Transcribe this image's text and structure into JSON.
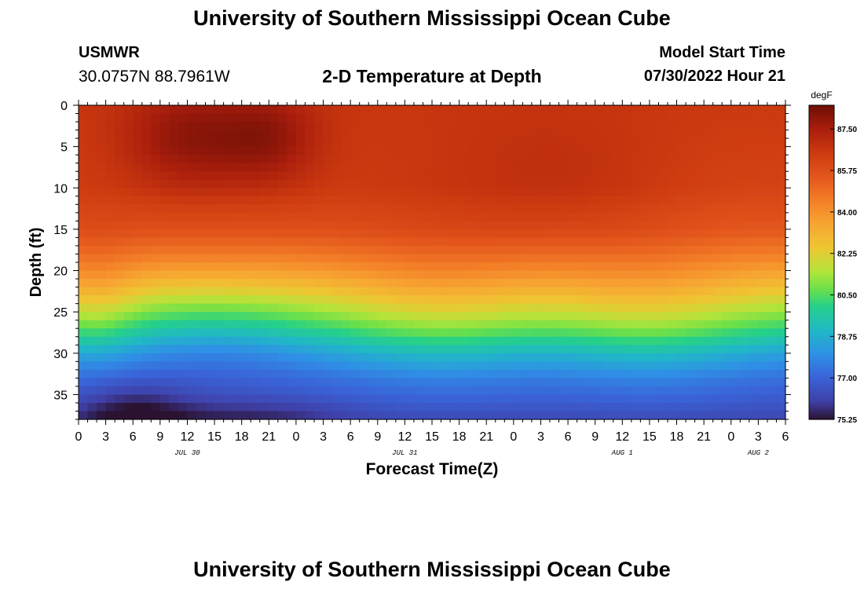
{
  "header": {
    "title": "University of Southern Mississippi Ocean Cube",
    "station_name": "USMWR",
    "station_coords": "30.0757N  88.7961W",
    "plot_title": "2-D Temperature at Depth",
    "start_label": "Model Start Time",
    "start_value": "07/30/2022 Hour 21"
  },
  "footer": {
    "title": "University of Southern Mississippi Ocean Cube"
  },
  "chart_data": {
    "type": "heatmap",
    "title": "2-D Temperature at Depth",
    "xlabel": "Forecast Time(Z)",
    "ylabel": "Depth (ft)",
    "units": "degF",
    "x_hours": [
      0,
      78
    ],
    "y_range": [
      0,
      38
    ],
    "y_ticks": [
      0,
      5,
      10,
      15,
      20,
      25,
      30,
      35
    ],
    "x_tick_labels": [
      "0",
      "3",
      "6",
      "9",
      "12",
      "15",
      "18",
      "21",
      "0",
      "3",
      "6",
      "9",
      "12",
      "15",
      "18",
      "21",
      "0",
      "3",
      "6",
      "9",
      "12",
      "15",
      "18",
      "21",
      "0",
      "3",
      "6"
    ],
    "day_labels": [
      {
        "label": "JUL 30",
        "hour": 12
      },
      {
        "label": "JUL 31",
        "hour": 36
      },
      {
        "label": "AUG 1",
        "hour": 60
      },
      {
        "label": "AUG 2",
        "hour": 75
      }
    ],
    "colorbar": {
      "min": 75.25,
      "max": 88.5,
      "labels": [
        "87.50",
        "85.75",
        "84.00",
        "82.25",
        "80.50",
        "78.75",
        "77.00",
        "75.25"
      ],
      "stops": [
        {
          "v": 75.25,
          "c": "#2a1230"
        },
        {
          "v": 76.0,
          "c": "#3f3fa6"
        },
        {
          "v": 77.0,
          "c": "#3a63d8"
        },
        {
          "v": 78.0,
          "c": "#2f90e6"
        },
        {
          "v": 79.0,
          "c": "#20b8c6"
        },
        {
          "v": 80.0,
          "c": "#25d08a"
        },
        {
          "v": 80.75,
          "c": "#6be04a"
        },
        {
          "v": 81.5,
          "c": "#b4e43a"
        },
        {
          "v": 82.5,
          "c": "#eec632"
        },
        {
          "v": 83.5,
          "c": "#f7a532"
        },
        {
          "v": 84.5,
          "c": "#f37d27"
        },
        {
          "v": 85.5,
          "c": "#e3561c"
        },
        {
          "v": 86.5,
          "c": "#cc3a10"
        },
        {
          "v": 87.5,
          "c": "#a91e0c"
        },
        {
          "v": 88.5,
          "c": "#6e0f06"
        }
      ]
    },
    "depth_profile": [
      {
        "d": 0,
        "v": 86.6
      },
      {
        "d": 10,
        "v": 86.4
      },
      {
        "d": 15,
        "v": 85.7
      },
      {
        "d": 18,
        "v": 84.6
      },
      {
        "d": 21,
        "v": 83.2
      },
      {
        "d": 24,
        "v": 81.6
      },
      {
        "d": 27,
        "v": 80.0
      },
      {
        "d": 30,
        "v": 78.3
      },
      {
        "d": 33,
        "v": 77.2
      },
      {
        "d": 36,
        "v": 76.6
      },
      {
        "d": 38,
        "v": 76.2
      }
    ],
    "features": [
      {
        "t": 12,
        "d": 4,
        "st": 5,
        "sd": 4.5,
        "a": 1.4
      },
      {
        "t": 21,
        "d": 4,
        "st": 4,
        "sd": 4,
        "a": 1.3
      },
      {
        "t": 55,
        "d": 9,
        "st": 12,
        "sd": 6,
        "a": 0.5
      },
      {
        "t": 70,
        "d": 12,
        "st": 10,
        "sd": 8,
        "a": -0.4
      },
      {
        "t": 6,
        "d": 38,
        "st": 4.5,
        "sd": 3,
        "a": -1.3
      },
      {
        "t": 19,
        "d": 38,
        "st": 7,
        "sd": 1.8,
        "a": -0.7
      },
      {
        "t": 15,
        "d": 28,
        "st": 7,
        "sd": 4,
        "a": -0.6
      },
      {
        "t": 40,
        "d": 26,
        "st": 8,
        "sd": 6,
        "a": 1.0
      },
      {
        "t": 63,
        "d": 26,
        "st": 8,
        "sd": 6,
        "a": 1.1
      },
      {
        "t": 2,
        "d": 24,
        "st": 3,
        "sd": 5,
        "a": 0.8
      }
    ]
  }
}
